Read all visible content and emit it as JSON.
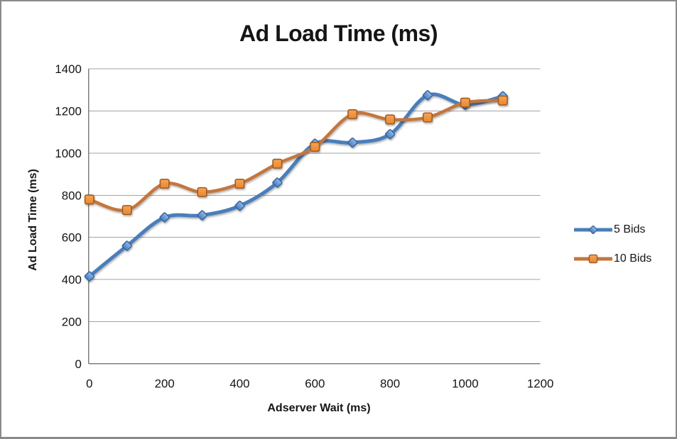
{
  "window": {
    "background": "#ffffff",
    "border_color": "#8a8a8a"
  },
  "chart_data": {
    "type": "line",
    "title": "Ad Load Time (ms)",
    "xlabel": "Adserver Wait (ms)",
    "ylabel": "Ad Load Time (ms)",
    "x": [
      0,
      100,
      200,
      300,
      400,
      500,
      600,
      700,
      800,
      900,
      1000,
      1100
    ],
    "series": [
      {
        "name": "5 Bids",
        "marker": "diamond",
        "line_color": "#4A7EBB",
        "line_width": 5,
        "marker_fill_light": "#8FBCE8",
        "marker_fill_dark": "#4D7EBF",
        "marker_stroke": "#3A639C",
        "values": [
          415,
          560,
          695,
          705,
          750,
          860,
          1045,
          1050,
          1090,
          1275,
          1230,
          1270
        ]
      },
      {
        "name": "10 Bids",
        "marker": "square",
        "line_color": "#C4763C",
        "line_width": 4.5,
        "marker_fill_light": "#F6A457",
        "marker_fill_dark": "#E8872F",
        "marker_stroke": "#9E5B22",
        "values": [
          780,
          730,
          855,
          815,
          855,
          950,
          1030,
          1185,
          1160,
          1170,
          1240,
          1250
        ]
      }
    ],
    "xlim": [
      0,
      1200
    ],
    "ylim": [
      0,
      1400
    ],
    "x_ticks": [
      0,
      200,
      400,
      600,
      800,
      1000,
      1200
    ],
    "y_ticks": [
      0,
      200,
      400,
      600,
      800,
      1000,
      1200,
      1400
    ],
    "grid": true,
    "grid_color": "#a3a3a3",
    "axis_color": "#7f7f7f",
    "tick_label_color": "#151515",
    "legend_position": "right"
  }
}
